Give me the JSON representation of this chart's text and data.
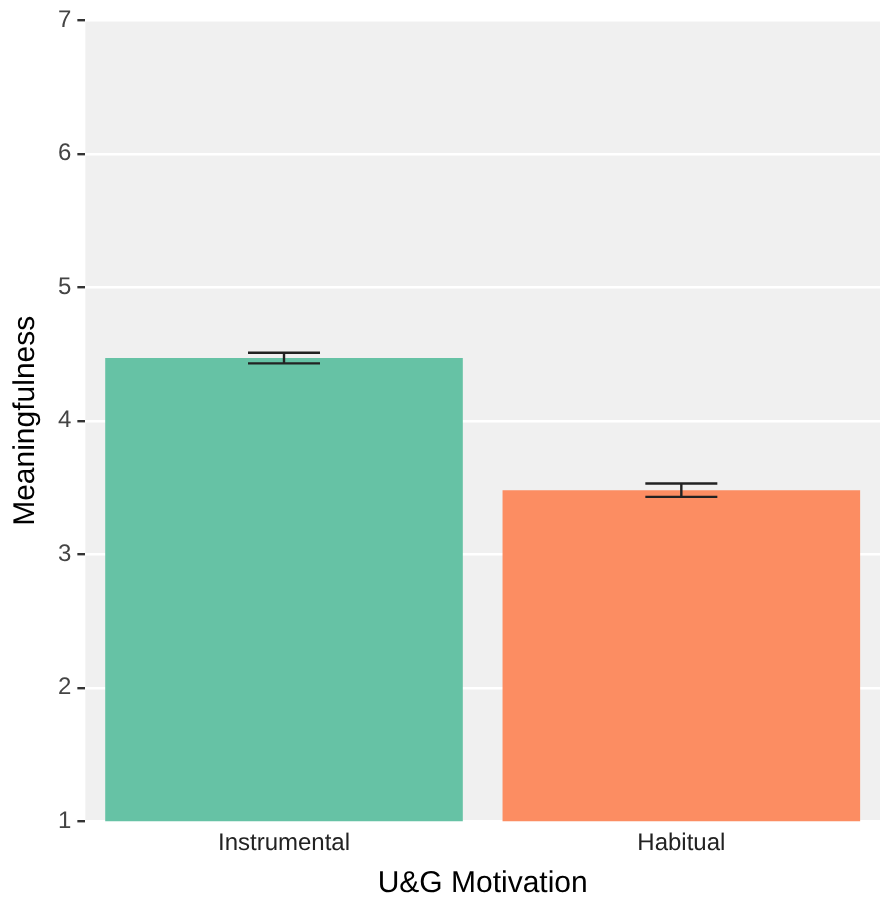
{
  "chart_data": {
    "type": "bar",
    "xlabel": "U&G Motivation",
    "ylabel": "Meaningfulness",
    "categories": [
      "Instrumental",
      "Habitual"
    ],
    "values": [
      4.47,
      3.48
    ],
    "colors": [
      "#66c2a5",
      "#fc8d62"
    ],
    "errors": [
      0.04,
      0.05
    ],
    "ylim": [
      1,
      7
    ],
    "yticks": [
      1,
      2,
      3,
      4,
      5,
      6,
      7
    ],
    "grid": "y"
  }
}
